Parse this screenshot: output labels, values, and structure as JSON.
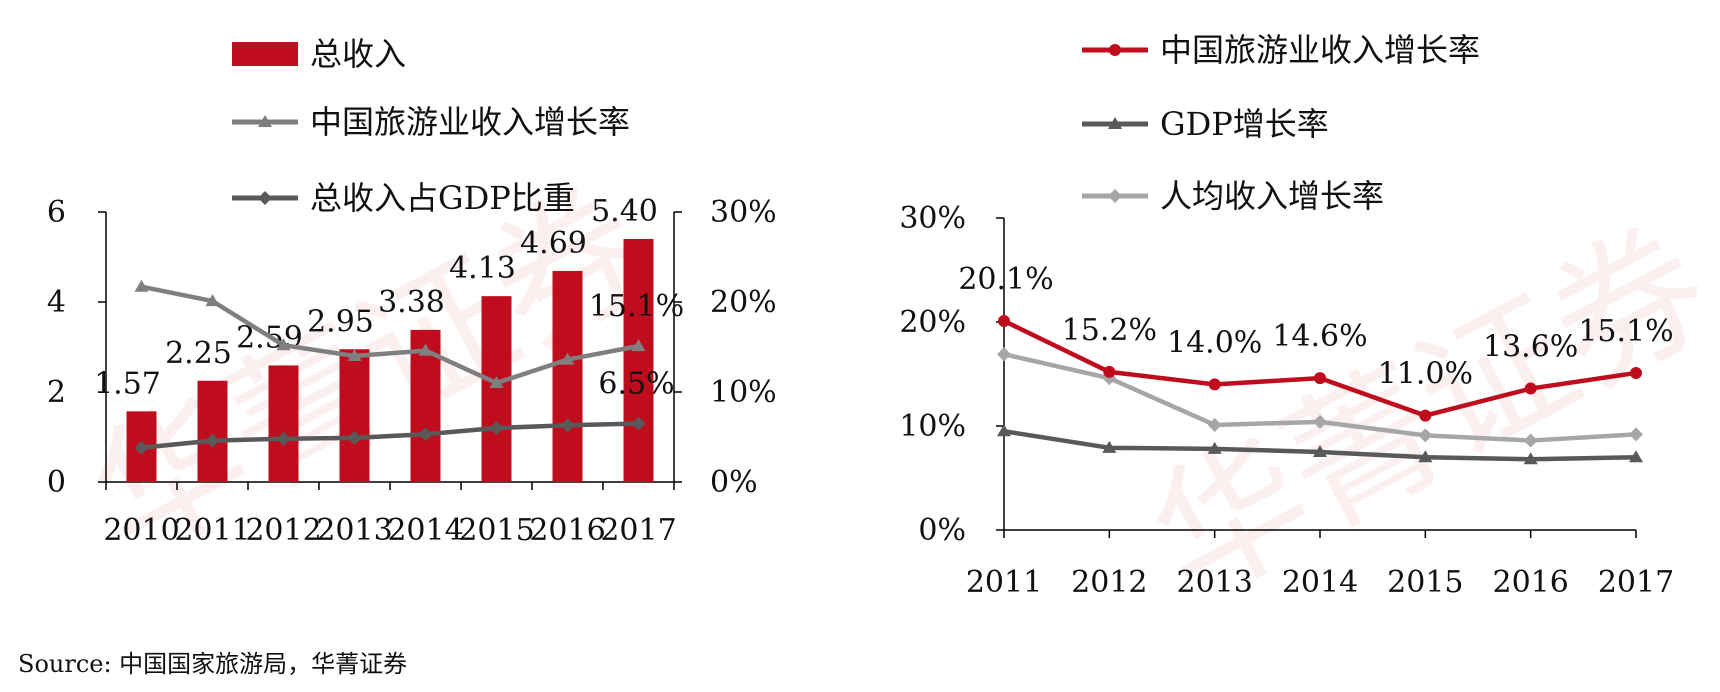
{
  "watermark": "华菁证券",
  "source": "Source: 中国国家旅游局，华菁证券",
  "colors": {
    "red": "#c00d1e",
    "gray": "#7f7f7f",
    "dark": "#595959",
    "light": "#a6a6a6"
  },
  "chart_data": [
    {
      "type": "bar",
      "categories": [
        "2010",
        "2011",
        "2012",
        "2013",
        "2014",
        "2015",
        "2016",
        "2017"
      ],
      "series": [
        {
          "name": "总收入",
          "kind": "bar",
          "axis": "left",
          "values": [
            1.57,
            2.25,
            2.59,
            2.95,
            3.38,
            4.13,
            4.69,
            5.4
          ],
          "labels": [
            "1.57",
            "2.25",
            "2.59",
            "2.95",
            "3.38",
            "4.13",
            "4.69",
            "5.40"
          ]
        },
        {
          "name": "中国旅游业收入增长率",
          "kind": "line",
          "marker": "triangle",
          "axis": "right",
          "values": [
            21.7,
            20.1,
            15.2,
            14.0,
            14.6,
            11.0,
            13.6,
            15.1
          ],
          "labels": [
            "",
            "",
            "",
            "",
            "",
            "",
            "",
            "15.1%"
          ]
        },
        {
          "name": "总收入占GDP比重",
          "kind": "line",
          "marker": "diamond",
          "axis": "right",
          "values": [
            3.8,
            4.6,
            4.8,
            4.9,
            5.3,
            6.0,
            6.3,
            6.5
          ],
          "labels": [
            "",
            "",
            "",
            "",
            "",
            "",
            "",
            "6.5%"
          ]
        }
      ],
      "ylim": [
        0,
        6
      ],
      "yticks": [
        "0",
        "2",
        "4",
        "6"
      ],
      "y2lim": [
        0,
        30
      ],
      "y2ticks": [
        "0%",
        "10%",
        "20%",
        "30%"
      ],
      "legend": "top"
    },
    {
      "type": "line",
      "categories": [
        "2011",
        "2012",
        "2013",
        "2014",
        "2015",
        "2016",
        "2017"
      ],
      "series": [
        {
          "name": "中国旅游业收入增长率",
          "marker": "circle",
          "values": [
            20.1,
            15.2,
            14.0,
            14.6,
            11.0,
            13.6,
            15.1
          ],
          "labels": [
            "20.1%",
            "15.2%",
            "14.0%",
            "14.6%",
            "11.0%",
            "13.6%",
            "15.1%"
          ]
        },
        {
          "name": "GDP增长率",
          "marker": "triangle",
          "values": [
            9.5,
            7.9,
            7.8,
            7.5,
            7.0,
            6.8,
            7.0
          ],
          "labels": []
        },
        {
          "name": "人均收入增长率",
          "marker": "diamond",
          "values": [
            16.9,
            14.6,
            10.1,
            10.4,
            9.1,
            8.6,
            9.2
          ],
          "labels": []
        }
      ],
      "ylim": [
        0,
        30
      ],
      "yticks": [
        "0%",
        "10%",
        "20%",
        "30%"
      ],
      "legend": "top-right"
    }
  ]
}
